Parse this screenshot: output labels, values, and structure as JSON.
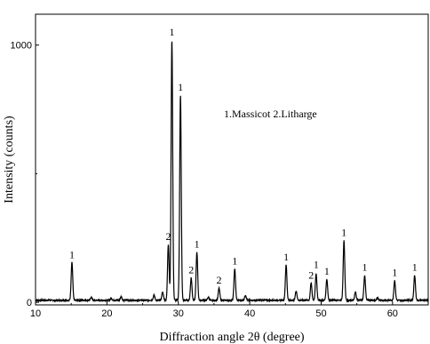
{
  "chart_data": {
    "type": "line",
    "title": "",
    "xlabel": "Diffraction angle 2θ (degree)",
    "ylabel": "Intensity (counts)",
    "xlim": [
      10,
      65
    ],
    "ylim": [
      -10,
      1120
    ],
    "x_ticks": [
      10,
      20,
      30,
      40,
      50,
      60
    ],
    "y_ticks": [
      0,
      1000
    ],
    "x_tick_labels": [
      "10",
      "20",
      "30",
      "40",
      "50",
      "60"
    ],
    "y_tick_labels": [
      "0",
      "1000"
    ],
    "legend_text": "1.Massicot  2.Litharge",
    "legend_position": "upper-right",
    "grid": false,
    "line_color": "#000000",
    "baseline": 8,
    "peaks": [
      {
        "x": 15.1,
        "y": 155,
        "label": "1"
      },
      {
        "x": 17.8,
        "y": 20,
        "label": ""
      },
      {
        "x": 20.6,
        "y": 16,
        "label": ""
      },
      {
        "x": 22.0,
        "y": 22,
        "label": ""
      },
      {
        "x": 26.6,
        "y": 28,
        "label": ""
      },
      {
        "x": 27.8,
        "y": 40,
        "label": ""
      },
      {
        "x": 28.6,
        "y": 225,
        "label": "2"
      },
      {
        "x": 29.1,
        "y": 1020,
        "label": "1"
      },
      {
        "x": 30.3,
        "y": 805,
        "label": "1"
      },
      {
        "x": 31.8,
        "y": 95,
        "label": "2"
      },
      {
        "x": 32.6,
        "y": 195,
        "label": "1"
      },
      {
        "x": 34.2,
        "y": 20,
        "label": ""
      },
      {
        "x": 35.7,
        "y": 55,
        "label": "2"
      },
      {
        "x": 37.9,
        "y": 130,
        "label": "1"
      },
      {
        "x": 39.4,
        "y": 28,
        "label": ""
      },
      {
        "x": 45.1,
        "y": 145,
        "label": "1"
      },
      {
        "x": 46.5,
        "y": 45,
        "label": ""
      },
      {
        "x": 48.6,
        "y": 75,
        "label": "2"
      },
      {
        "x": 49.3,
        "y": 110,
        "label": "1"
      },
      {
        "x": 50.8,
        "y": 90,
        "label": "1"
      },
      {
        "x": 53.2,
        "y": 240,
        "label": "1"
      },
      {
        "x": 54.8,
        "y": 40,
        "label": ""
      },
      {
        "x": 56.1,
        "y": 105,
        "label": "1"
      },
      {
        "x": 57.9,
        "y": 18,
        "label": ""
      },
      {
        "x": 60.3,
        "y": 85,
        "label": "1"
      },
      {
        "x": 63.1,
        "y": 105,
        "label": "1"
      }
    ]
  }
}
